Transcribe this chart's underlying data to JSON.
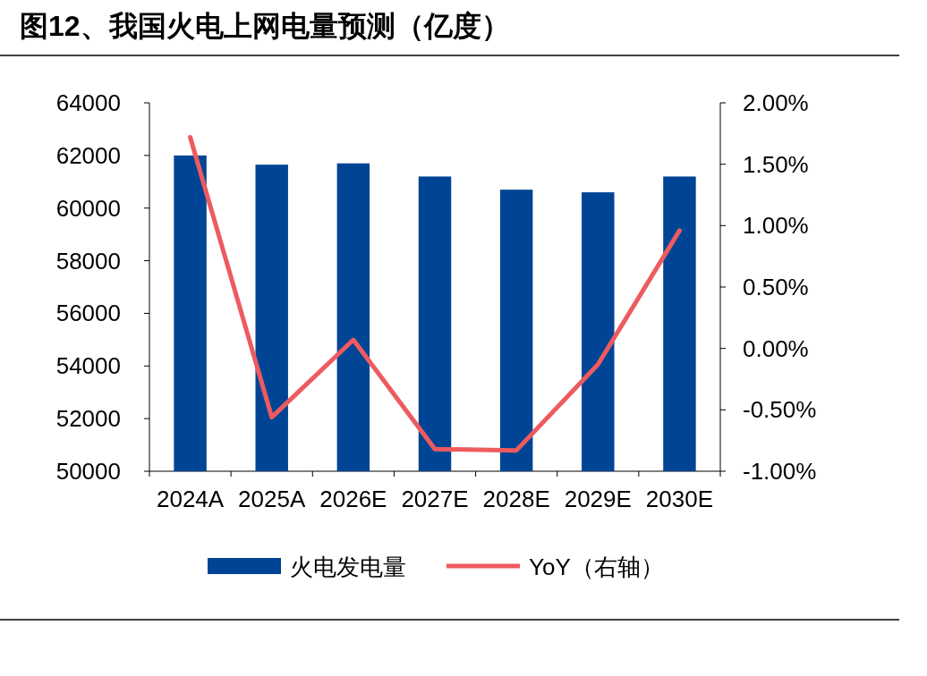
{
  "chart_data": {
    "type": "bar",
    "title": "图12、我国火电上网电量预测（亿度）",
    "categories": [
      "2024A",
      "2025A",
      "2026E",
      "2027E",
      "2028E",
      "2029E",
      "2030E"
    ],
    "series": [
      {
        "name": "火电发电量",
        "color": "#004595",
        "values": [
          62000,
          61650,
          61700,
          61200,
          60700,
          60600,
          61200
        ]
      },
      {
        "name": "YoY（右轴）",
        "type": "line",
        "axis": "y2",
        "color": "#ed5b5e",
        "values": [
          1.72,
          -0.56,
          0.07,
          -0.82,
          -0.83,
          -0.13,
          0.96
        ]
      }
    ],
    "ylim": [
      50000,
      64000
    ],
    "yticks": [
      50000,
      52000,
      54000,
      56000,
      58000,
      60000,
      62000,
      64000
    ],
    "y2lim": [
      -1,
      2
    ],
    "y2ticks": [
      {
        "value": -1,
        "label": "-1.00%"
      },
      {
        "value": -0.5,
        "label": "-0.50%"
      },
      {
        "value": 0,
        "label": "0.00%"
      },
      {
        "value": 0.5,
        "label": "0.50%"
      },
      {
        "value": 1,
        "label": "1.00%"
      },
      {
        "value": 1.5,
        "label": "1.50%"
      },
      {
        "value": 2,
        "label": "2.00%"
      }
    ],
    "legend": "bottom",
    "grid": false,
    "marker": "none",
    "line_style": "solid"
  }
}
